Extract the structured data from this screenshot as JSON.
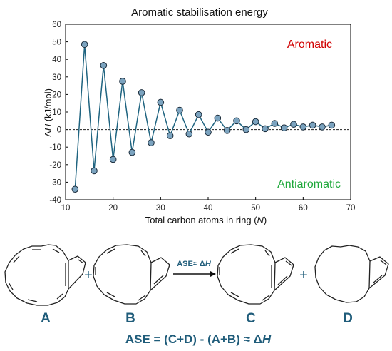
{
  "chart_data": {
    "type": "line",
    "title": "Aromatic stabilisation energy",
    "ylabel_symbol": "Δ",
    "ylabel_var": "H",
    "ylabel_unit": " (kJ/mol)",
    "xlabel_text": "Total carbon atoms in ring (",
    "xlabel_var": "N",
    "xlabel_close": ")",
    "xlim": [
      10,
      70
    ],
    "ylim": [
      -40,
      60
    ],
    "xticks": [
      10,
      20,
      30,
      40,
      50,
      60,
      70
    ],
    "yticks": [
      60,
      50,
      40,
      30,
      20,
      10,
      0,
      -10,
      -20,
      -30,
      -40
    ],
    "x": [
      12,
      14,
      16,
      18,
      20,
      22,
      24,
      26,
      28,
      30,
      32,
      34,
      36,
      38,
      40,
      42,
      44,
      46,
      48,
      50,
      52,
      54,
      56,
      58,
      60,
      62,
      64,
      66
    ],
    "y": [
      -34,
      48.5,
      -23.5,
      36.5,
      -17,
      27.5,
      -13,
      21,
      -7.5,
      15.5,
      -3.5,
      11,
      -2.5,
      8.5,
      -1.5,
      6.5,
      -0.5,
      5,
      0,
      4.5,
      0.5,
      3.5,
      1,
      3,
      1.5,
      2.5,
      1.5,
      2.5
    ],
    "zero_line": "dashed",
    "grid": false,
    "annotations": [
      {
        "text": "Aromatic",
        "color": "#d10000"
      },
      {
        "text": "Antiaromatic",
        "color": "#1ea83a"
      }
    ],
    "colors": {
      "line": "#1f6480",
      "marker_fill": "#7ba3bf",
      "marker_edge": "#1a2b3a"
    }
  },
  "scheme": {
    "labels": [
      "A",
      "B",
      "C",
      "D"
    ],
    "plus": "+",
    "arrow_label_prefix": "ASE≈ Δ",
    "arrow_label_var": "H",
    "equation_prefix": "ASE = (C+D) - (A+B) ≈ Δ",
    "equation_var": "H",
    "color": "#1f5c7a"
  }
}
